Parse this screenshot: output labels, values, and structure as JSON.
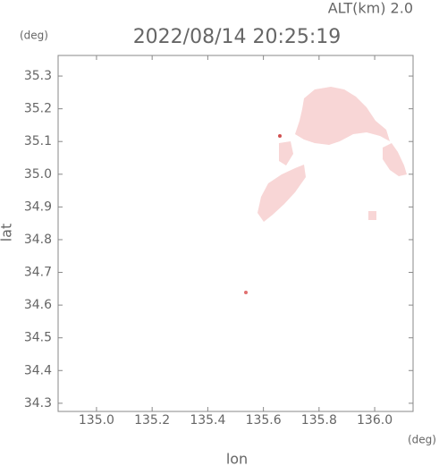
{
  "chart_data": {
    "type": "map",
    "title": "2022/08/14 20:25:19",
    "annotation": "ALT(km) 2.0",
    "y_unit": "(deg)",
    "x_unit": "(deg)",
    "xlabel": "lon",
    "ylabel": "lat",
    "xlim": [
      134.862,
      136.138
    ],
    "ylim": [
      34.275,
      35.363
    ],
    "xticks": [
      {
        "value": 135,
        "label": "135.0"
      },
      135.2,
      135.4,
      135.6,
      135.8,
      {
        "value": 136,
        "label": "136.0"
      }
    ],
    "yticks": [
      34.3,
      34.4,
      34.5,
      34.6,
      34.7,
      34.8,
      34.9,
      {
        "value": 35,
        "label": "35.0"
      },
      35.1,
      35.2,
      35.3
    ]
  }
}
